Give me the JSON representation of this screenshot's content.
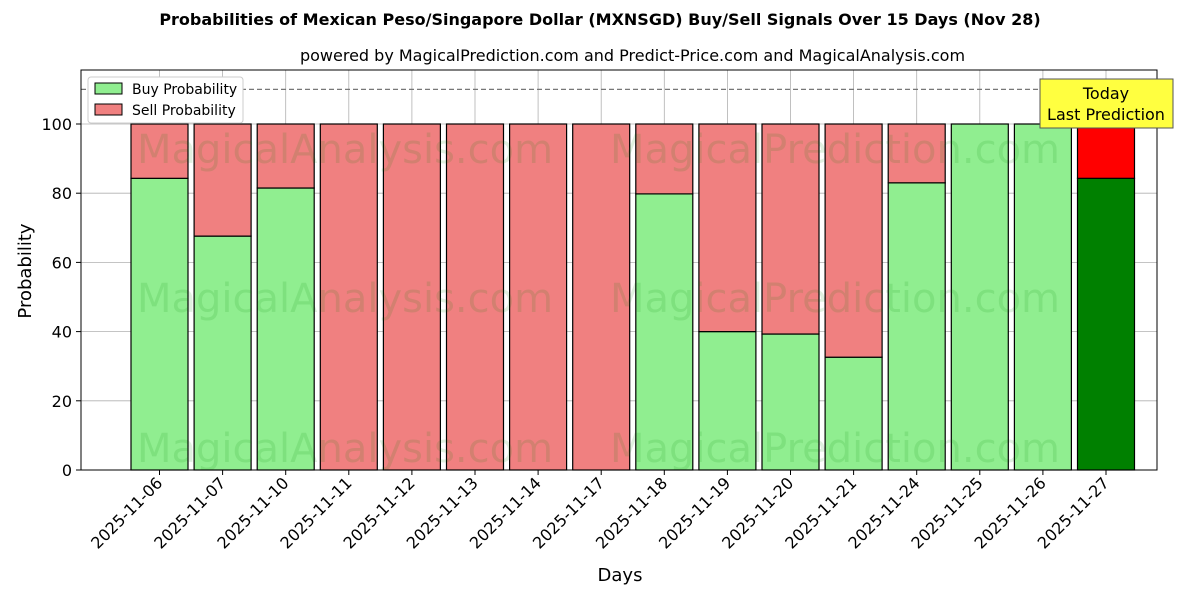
{
  "title": "Probabilities of Mexican Peso/Singapore Dollar (MXNSGD) Buy/Sell Signals Over 15 Days (Nov 28)",
  "subtitle": "powered by MagicalPrediction.com and Predict-Price.com and MagicalAnalysis.com",
  "legend": {
    "buy": "Buy Probability",
    "sell": "Sell Probability"
  },
  "annotation": {
    "line1": "Today",
    "line2": "Last Prediction"
  },
  "watermarks": [
    "MagicalAnalysis.com",
    "MagicalPrediction.com"
  ],
  "colors": {
    "buy": "#90ee90",
    "sell": "#f08080",
    "today_buy": "#008000",
    "today_sell": "#ff0000",
    "annotation_bg": "#ffff40"
  },
  "chart_data": {
    "type": "bar",
    "stacked": true,
    "title": "Probabilities of Mexican Peso/Singapore Dollar (MXNSGD) Buy/Sell Signals Over 15 Days (Nov 28)",
    "xlabel": "Days",
    "ylabel": "Probability",
    "ylim": [
      0,
      115
    ],
    "yticks": [
      0,
      20,
      40,
      60,
      80,
      100
    ],
    "threshold_line": 110,
    "categories": [
      "2025-11-06",
      "2025-11-07",
      "2025-11-10",
      "2025-11-11",
      "2025-11-12",
      "2025-11-13",
      "2025-11-14",
      "2025-11-17",
      "2025-11-18",
      "2025-11-19",
      "2025-11-20",
      "2025-11-21",
      "2025-11-24",
      "2025-11-25",
      "2025-11-26",
      "2025-11-27"
    ],
    "series": [
      {
        "name": "Buy Probability",
        "values": [
          84.3,
          67.6,
          81.5,
          0,
          0,
          0,
          0,
          0,
          79.8,
          40.0,
          39.3,
          32.6,
          83.0,
          100,
          100,
          84.3
        ]
      },
      {
        "name": "Sell Probability",
        "values": [
          15.7,
          32.4,
          18.5,
          100,
          100,
          100,
          100,
          100,
          20.2,
          60.0,
          60.7,
          67.4,
          17.0,
          0,
          0,
          15.7
        ]
      }
    ],
    "legend_position": "upper left",
    "grid": true
  }
}
